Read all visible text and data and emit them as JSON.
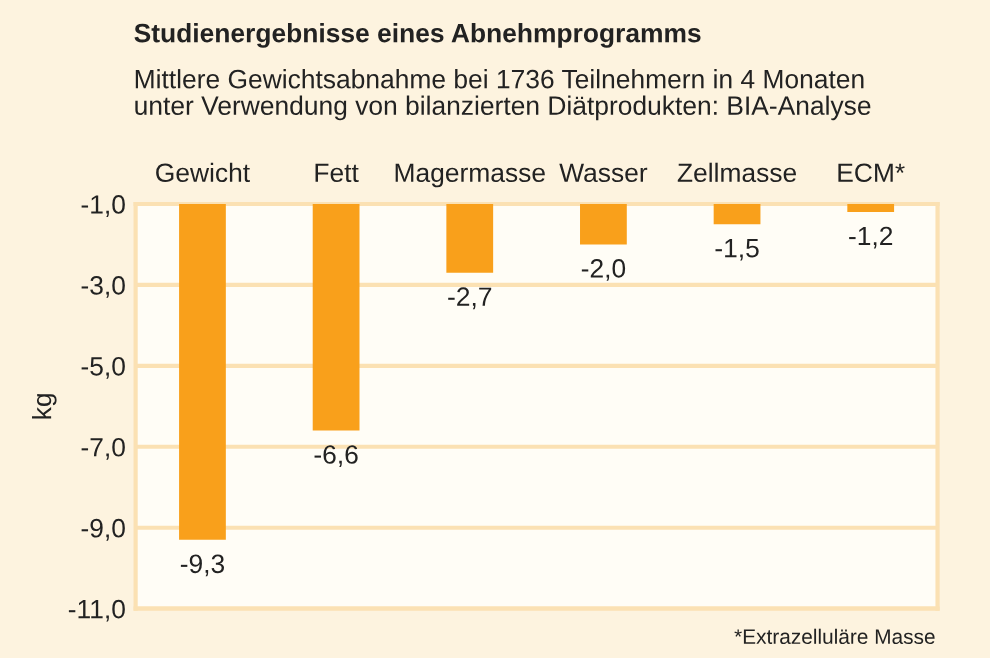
{
  "chart_data": {
    "type": "bar",
    "title": "Studienergebnisse eines Abnehmprogramms",
    "subtitle": "Mittlere Gewichtsabnahme bei 1736 Teilnehmern in 4 Monaten\nunter Verwendung von bilanzierten Diätprodukten: BIA-Analyse",
    "ylabel": "kg",
    "categories": [
      "Gewicht",
      "Fett",
      "Magermasse",
      "Wasser",
      "Zellmasse",
      "ECM*"
    ],
    "values": [
      -9.3,
      -6.6,
      -2.7,
      -2.0,
      -1.5,
      -1.2
    ],
    "value_labels": [
      "-9,3",
      "-6,6",
      "-2,7",
      "-2,0",
      "-1,5",
      "-1,2"
    ],
    "color": "#f9a01b",
    "ylim": [
      -11,
      -1
    ],
    "yticks": [
      {
        "value": -11,
        "label": "-11,0"
      },
      {
        "value": -9,
        "label": "-9,0"
      },
      {
        "value": -7,
        "label": "-7,0"
      },
      {
        "value": -5,
        "label": "-5,0"
      },
      {
        "value": -3,
        "label": "-3,0"
      },
      {
        "value": -1,
        "label": "-1,0"
      }
    ],
    "grid": "y",
    "annotations": [
      "*Extrazelluläre Masse"
    ]
  }
}
